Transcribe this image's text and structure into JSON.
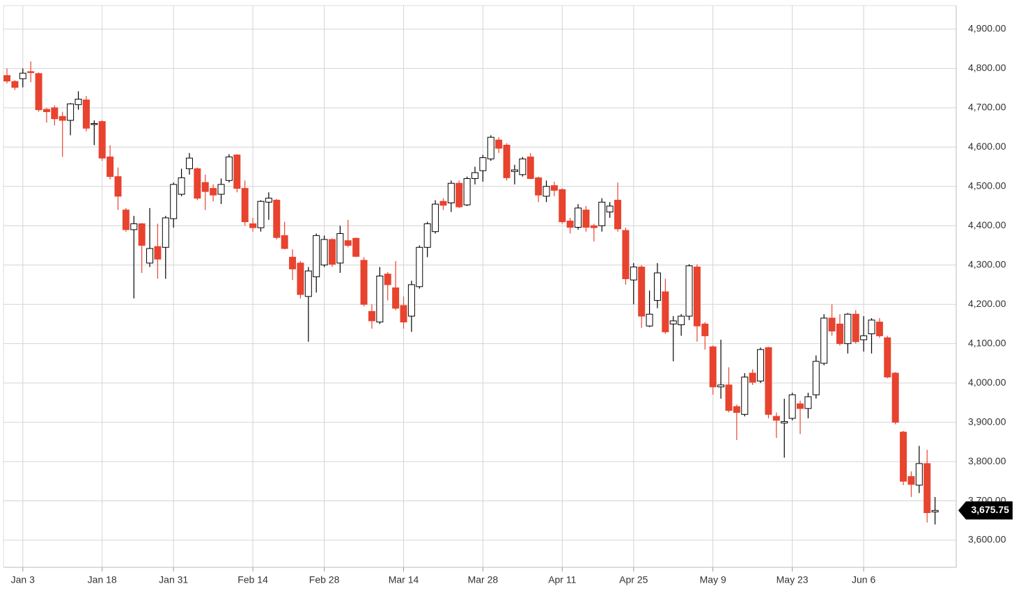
{
  "chart_data": {
    "type": "candlestick",
    "categories": [
      null,
      null,
      "Jan 3",
      null,
      null,
      null,
      null,
      null,
      null,
      null,
      null,
      null,
      "Jan 18",
      null,
      null,
      null,
      null,
      null,
      null,
      null,
      null,
      "Jan 31",
      null,
      null,
      null,
      null,
      null,
      null,
      null,
      null,
      null,
      "Feb 14",
      null,
      null,
      null,
      null,
      null,
      null,
      null,
      null,
      "Feb 28",
      null,
      null,
      null,
      null,
      null,
      null,
      null,
      null,
      null,
      "Mar 14",
      null,
      null,
      null,
      null,
      null,
      null,
      null,
      null,
      null,
      "Mar 28",
      null,
      null,
      null,
      null,
      null,
      null,
      null,
      null,
      null,
      "Apr 11",
      null,
      null,
      null,
      null,
      null,
      null,
      null,
      null,
      "Apr 25",
      null,
      null,
      null,
      null,
      null,
      null,
      null,
      null,
      null,
      "May 9",
      null,
      null,
      null,
      null,
      null,
      null,
      null,
      null,
      null,
      "May 23",
      null,
      null,
      null,
      null,
      null,
      null,
      null,
      null,
      "Jun 6",
      null,
      null,
      null,
      null,
      null,
      null,
      null,
      null,
      null
    ],
    "open": [
      4782,
      4767,
      4774,
      4792,
      4787,
      4696,
      4700,
      4678,
      4668,
      4708,
      4720,
      4658,
      4665,
      4575,
      4525,
      4440,
      4390,
      4405,
      4305,
      4347,
      4345,
      4418,
      4480,
      4545,
      4545,
      4510,
      4495,
      4480,
      4515,
      4580,
      4495,
      4405,
      4395,
      4460,
      4465,
      4375,
      4320,
      4305,
      4220,
      4270,
      4300,
      4365,
      4305,
      4362,
      4368,
      4312,
      4182,
      4155,
      4277,
      4242,
      4197,
      4170,
      4245,
      4345,
      4385,
      4462,
      4458,
      4508,
      4453,
      4520,
      4540,
      4570,
      4618,
      4605,
      4538,
      4530,
      4575,
      4522,
      4475,
      4502,
      4492,
      4412,
      4396,
      4440,
      4400,
      4400,
      4435,
      4465,
      4388,
      4262,
      4295,
      4145,
      4210,
      4232,
      4150,
      4148,
      4170,
      4295,
      4150,
      4092,
      3990,
      3995,
      3940,
      3920,
      4025,
      4005,
      4090,
      3915,
      3898,
      3910,
      3947,
      3935,
      3970,
      4050,
      4165,
      4150,
      4100,
      4175,
      4110,
      4125,
      4155,
      4115,
      4025,
      3875,
      3762,
      3740,
      3795,
      3672
    ],
    "high": [
      4800,
      4770,
      4800,
      4818,
      4790,
      4700,
      4706,
      4690,
      4712,
      4742,
      4730,
      4668,
      4668,
      4605,
      4548,
      4445,
      4425,
      4407,
      4445,
      4405,
      4425,
      4510,
      4545,
      4585,
      4548,
      4530,
      4505,
      4520,
      4582,
      4582,
      4515,
      4420,
      4465,
      4485,
      4468,
      4410,
      4340,
      4310,
      4295,
      4380,
      4375,
      4368,
      4400,
      4415,
      4370,
      4320,
      4200,
      4295,
      4282,
      4310,
      4220,
      4260,
      4350,
      4410,
      4465,
      4470,
      4515,
      4515,
      4525,
      4550,
      4580,
      4630,
      4625,
      4610,
      4555,
      4575,
      4585,
      4525,
      4515,
      4512,
      4495,
      4420,
      4455,
      4450,
      4405,
      4470,
      4460,
      4510,
      4395,
      4305,
      4300,
      4235,
      4305,
      4265,
      4170,
      4175,
      4302,
      4302,
      4155,
      4095,
      4110,
      4040,
      3945,
      4025,
      4035,
      4090,
      4092,
      3925,
      3960,
      3975,
      3955,
      3975,
      4070,
      4175,
      4200,
      4175,
      4178,
      4185,
      4170,
      4165,
      4165,
      4120,
      4028,
      3878,
      3775,
      3840,
      3830,
      3710
    ],
    "low": [
      4762,
      4745,
      4752,
      4765,
      4690,
      4662,
      4655,
      4575,
      4630,
      4695,
      4640,
      4605,
      4565,
      4518,
      4440,
      4385,
      4215,
      4280,
      4295,
      4265,
      4265,
      4395,
      4475,
      4530,
      4465,
      4440,
      4462,
      4455,
      4510,
      4485,
      4400,
      4385,
      4385,
      4415,
      4365,
      4340,
      4262,
      4215,
      4105,
      4230,
      4295,
      4295,
      4280,
      4345,
      4320,
      4195,
      4138,
      4150,
      4210,
      4185,
      4138,
      4130,
      4240,
      4320,
      4380,
      4440,
      4435,
      4445,
      4450,
      4505,
      4512,
      4565,
      4585,
      4515,
      4505,
      4525,
      4518,
      4460,
      4460,
      4475,
      4405,
      4380,
      4390,
      4385,
      4360,
      4385,
      4420,
      4385,
      4250,
      4200,
      4140,
      4142,
      4190,
      4125,
      4055,
      4120,
      4160,
      4105,
      4085,
      3970,
      3960,
      3925,
      3855,
      3915,
      3995,
      4000,
      3910,
      3860,
      3810,
      3905,
      3870,
      3910,
      3960,
      4045,
      4120,
      4095,
      4075,
      4100,
      4080,
      4075,
      4115,
      4012,
      3895,
      3740,
      3710,
      3720,
      3645,
      3640
    ],
    "close": [
      4768,
      4752,
      4788,
      4790,
      4695,
      4690,
      4672,
      4668,
      4710,
      4722,
      4648,
      4660,
      4572,
      4525,
      4475,
      4390,
      4405,
      4350,
      4342,
      4315,
      4420,
      4505,
      4522,
      4572,
      4470,
      4487,
      4478,
      4505,
      4575,
      4495,
      4410,
      4395,
      4462,
      4470,
      4370,
      4342,
      4290,
      4225,
      4285,
      4375,
      4365,
      4302,
      4380,
      4350,
      4322,
      4200,
      4158,
      4272,
      4250,
      4190,
      4155,
      4250,
      4345,
      4405,
      4455,
      4452,
      4508,
      4448,
      4520,
      4535,
      4573,
      4625,
      4597,
      4522,
      4542,
      4570,
      4520,
      4478,
      4500,
      4490,
      4410,
      4396,
      4445,
      4396,
      4395,
      4460,
      4450,
      4392,
      4265,
      4295,
      4170,
      4175,
      4280,
      4130,
      4158,
      4170,
      4298,
      4145,
      4120,
      3990,
      3995,
      3930,
      3925,
      4015,
      4002,
      4085,
      3920,
      3905,
      3902,
      3970,
      3935,
      3965,
      4055,
      4165,
      4132,
      4100,
      4175,
      4105,
      4120,
      4160,
      4120,
      4015,
      3900,
      3750,
      3742,
      3795,
      3670,
      3675.75
    ],
    "up_color": "#ffffff",
    "down_color": "#e8432e",
    "ylim": [
      3531,
      4960
    ],
    "yticks": [
      {
        "value": 3600,
        "label": "3,600.00"
      },
      {
        "value": 3700,
        "label": "3,700.00"
      },
      {
        "value": 3800,
        "label": "3,800.00"
      },
      {
        "value": 3900,
        "label": "3,900.00"
      },
      {
        "value": 4000,
        "label": "4,000.00"
      },
      {
        "value": 4100,
        "label": "4,100.00"
      },
      {
        "value": 4200,
        "label": "4,200.00"
      },
      {
        "value": 4300,
        "label": "4,300.00"
      },
      {
        "value": 4400,
        "label": "4,400.00"
      },
      {
        "value": 4500,
        "label": "4,500.00"
      },
      {
        "value": 4600,
        "label": "4,600.00"
      },
      {
        "value": 4700,
        "label": "4,700.00"
      },
      {
        "value": 4800,
        "label": "4,800.00"
      },
      {
        "value": 4900,
        "label": "4,900.00"
      }
    ],
    "last_price": {
      "value": 3675.75,
      "label": "3,675.75"
    },
    "grid": true
  }
}
